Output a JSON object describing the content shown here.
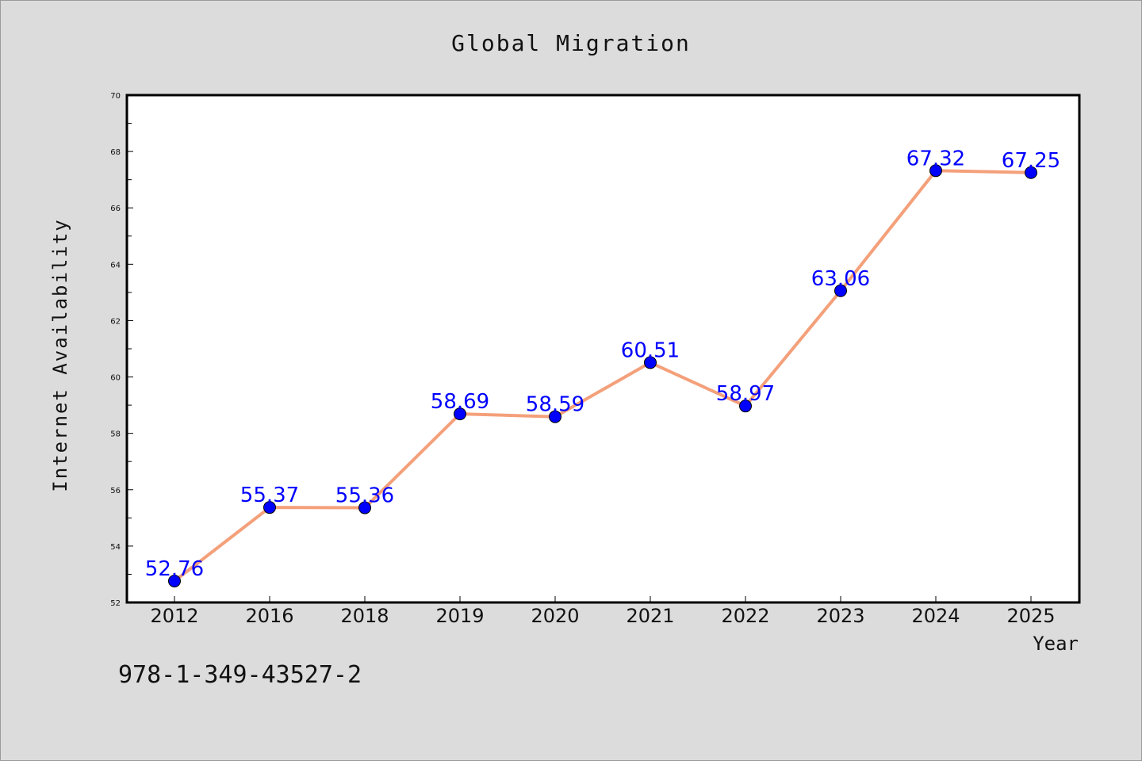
{
  "chart_data": {
    "type": "line",
    "title": "Global Migration",
    "xlabel": "Year",
    "ylabel": "Internet Availability",
    "categories": [
      "2012",
      "2016",
      "2018",
      "2019",
      "2020",
      "2021",
      "2022",
      "2023",
      "2024",
      "2025"
    ],
    "series": [
      {
        "values": [
          52.76,
          55.37,
          55.36,
          58.69,
          58.59,
          60.51,
          58.97,
          63.06,
          67.32,
          67.25
        ],
        "line_color": "#f4a07a",
        "marker_color": "#0000ff"
      }
    ],
    "data_labels": [
      "52.76",
      "55.37",
      "55.36",
      "58.69",
      "58.59",
      "60.51",
      "58.97",
      "63.06",
      "67.32",
      "67.25"
    ],
    "ylim": [
      52,
      70
    ],
    "y_ticks": [
      "52",
      "54",
      "56",
      "58",
      "60",
      "62",
      "64",
      "66",
      "68",
      "70"
    ],
    "grid": false,
    "legend": "none"
  },
  "footer": {
    "code": "978-1-349-43527-2"
  }
}
